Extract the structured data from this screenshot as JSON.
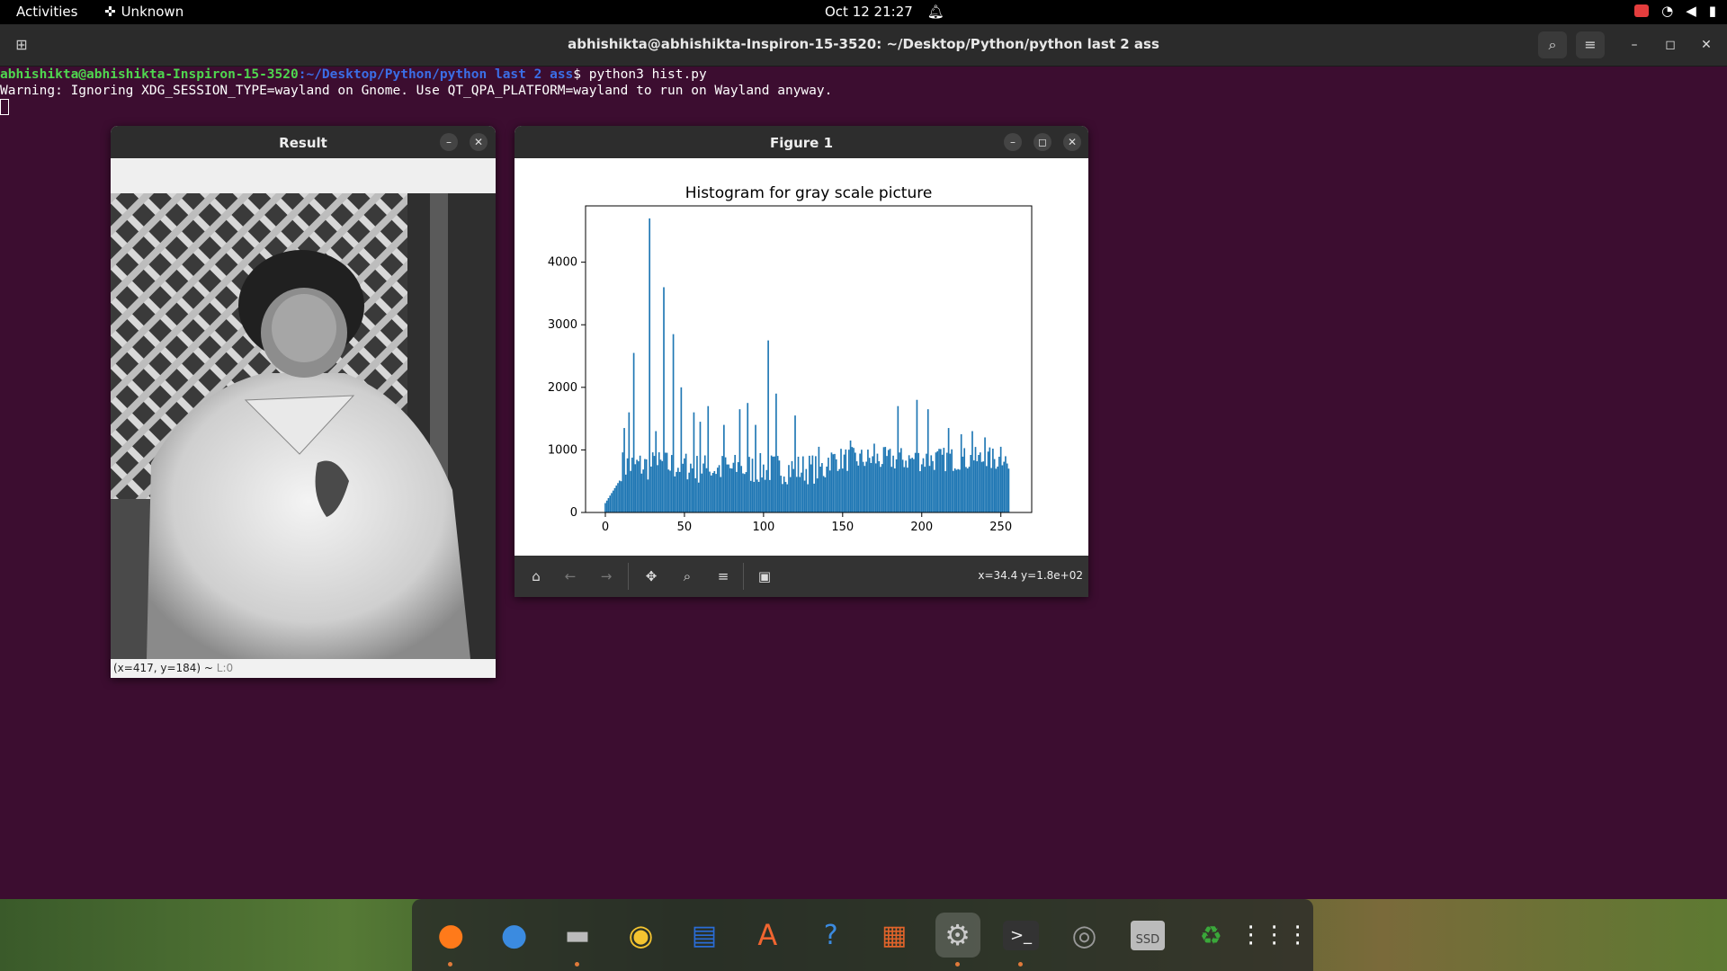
{
  "topbar": {
    "activities": "Activities",
    "app_name": "Unknown",
    "datetime": "Oct 12  21:27"
  },
  "terminal": {
    "title": "abhishikta@abhishikta-Inspiron-15-3520: ~/Desktop/Python/python last 2 ass",
    "prompt_user": "abhishikta@abhishikta-Inspiron-15-3520",
    "prompt_path": ":~/Desktop/Python/python last 2 ass",
    "command": "$ python3 hist.py",
    "output": "Warning: Ignoring XDG_SESSION_TYPE=wayland on Gnome. Use QT_QPA_PLATFORM=wayland to run on Wayland anyway."
  },
  "result_window": {
    "title": "Result",
    "status": "(x=417, y=184) ~ ",
    "status_dim": "L:0"
  },
  "figure_window": {
    "title": "Figure 1",
    "coords": "x=34.4 y=1.8e+02"
  },
  "chart_data": {
    "type": "bar",
    "title": "Histogram for gray scale picture",
    "xlabel": "",
    "ylabel": "",
    "xlim": [
      -12,
      270
    ],
    "ylim": [
      0,
      4900
    ],
    "xticks": [
      0,
      50,
      100,
      150,
      200,
      250
    ],
    "yticks": [
      0,
      1000,
      2000,
      3000,
      4000
    ],
    "color": "#1f77b4",
    "peaks": [
      [
        28,
        4700
      ],
      [
        37,
        3600
      ],
      [
        18,
        2550
      ],
      [
        43,
        2850
      ],
      [
        48,
        2000
      ],
      [
        103,
        2750
      ],
      [
        108,
        1900
      ],
      [
        15,
        1600
      ],
      [
        12,
        1350
      ],
      [
        32,
        1300
      ],
      [
        90,
        1750
      ],
      [
        85,
        1650
      ],
      [
        95,
        1400
      ],
      [
        65,
        1700
      ],
      [
        56,
        1600
      ],
      [
        60,
        1450
      ],
      [
        75,
        1400
      ],
      [
        120,
        1550
      ],
      [
        185,
        1700
      ],
      [
        197,
        1800
      ],
      [
        204,
        1650
      ],
      [
        217,
        1350
      ],
      [
        225,
        1250
      ],
      [
        232,
        1300
      ],
      [
        240,
        1200
      ],
      [
        250,
        1050
      ],
      [
        155,
        1150
      ],
      [
        170,
        1100
      ],
      [
        135,
        1050
      ]
    ]
  },
  "dock": {
    "apps": [
      "Firefox",
      "Thunderbird",
      "Files",
      "Rhythmbox",
      "Writer",
      "Software",
      "Help",
      "Impress",
      "Settings",
      "Terminal",
      "Disk",
      "SSD",
      "Trash",
      "Apps"
    ]
  },
  "dock_ssd_label": "SSD"
}
